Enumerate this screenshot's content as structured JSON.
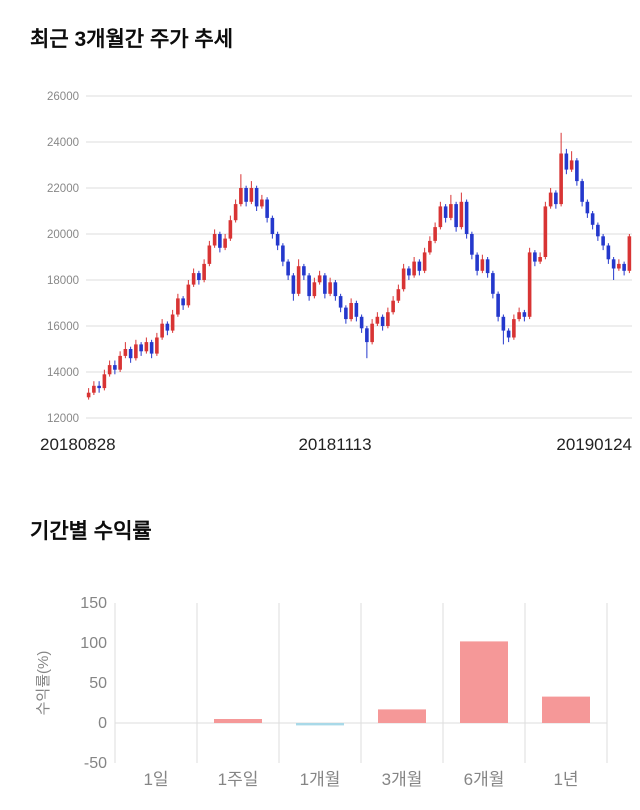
{
  "chart_data": [
    {
      "type": "candlestick",
      "title": "최근 3개월간 주가 추세",
      "ylim": [
        12000,
        26000
      ],
      "yticks": [
        12000,
        14000,
        16000,
        18000,
        20000,
        22000,
        24000,
        26000
      ],
      "xtick_labels": [
        "20180828",
        "20181113",
        "20190124"
      ],
      "up_color": "#d83434",
      "down_color": "#2438cc",
      "grid_color": "#dddddd",
      "tick_color": "#888888",
      "date_color": "#222222",
      "candles": [
        [
          12900,
          13300,
          12800,
          13100
        ],
        [
          13100,
          13600,
          13000,
          13400
        ],
        [
          13400,
          13600,
          13100,
          13300
        ],
        [
          13300,
          14100,
          13200,
          13900
        ],
        [
          13900,
          14500,
          13800,
          14300
        ],
        [
          14300,
          14500,
          13900,
          14100
        ],
        [
          14100,
          14900,
          14000,
          14700
        ],
        [
          14700,
          15300,
          14600,
          15000
        ],
        [
          15000,
          15100,
          14400,
          14600
        ],
        [
          14600,
          15400,
          14500,
          15200
        ],
        [
          15200,
          15300,
          14700,
          14900
        ],
        [
          14900,
          15500,
          14800,
          15300
        ],
        [
          15300,
          15400,
          14600,
          14800
        ],
        [
          14800,
          15700,
          14700,
          15500
        ],
        [
          15500,
          16300,
          15400,
          16100
        ],
        [
          16100,
          16200,
          15600,
          15800
        ],
        [
          15800,
          16700,
          15700,
          16500
        ],
        [
          16500,
          17400,
          16400,
          17200
        ],
        [
          17200,
          17300,
          16700,
          16900
        ],
        [
          16900,
          18000,
          16800,
          17800
        ],
        [
          17800,
          18500,
          17700,
          18300
        ],
        [
          18300,
          18400,
          17800,
          18000
        ],
        [
          18000,
          18900,
          17900,
          18700
        ],
        [
          18700,
          19700,
          18600,
          19500
        ],
        [
          19500,
          20200,
          19400,
          20000
        ],
        [
          20000,
          20100,
          19200,
          19400
        ],
        [
          19400,
          20000,
          19300,
          19800
        ],
        [
          19800,
          20800,
          19700,
          20600
        ],
        [
          20600,
          21500,
          20500,
          21300
        ],
        [
          21300,
          22600,
          21200,
          22000
        ],
        [
          22000,
          22100,
          21200,
          21400
        ],
        [
          21400,
          22300,
          21300,
          22000
        ],
        [
          22000,
          22100,
          21000,
          21200
        ],
        [
          21200,
          21700,
          21100,
          21500
        ],
        [
          21500,
          21600,
          20500,
          20700
        ],
        [
          20700,
          20800,
          19800,
          20000
        ],
        [
          20000,
          20100,
          19300,
          19500
        ],
        [
          19500,
          19600,
          18600,
          18800
        ],
        [
          18800,
          18900,
          18000,
          18200
        ],
        [
          18200,
          18300,
          17100,
          17400
        ],
        [
          17400,
          18900,
          17300,
          18600
        ],
        [
          18600,
          18700,
          18000,
          18200
        ],
        [
          18200,
          18300,
          17100,
          17300
        ],
        [
          17300,
          18100,
          17200,
          17900
        ],
        [
          17900,
          18400,
          17800,
          18200
        ],
        [
          18200,
          18300,
          17200,
          17400
        ],
        [
          17400,
          18100,
          17300,
          17900
        ],
        [
          17900,
          18000,
          17100,
          17300
        ],
        [
          17300,
          17400,
          16600,
          16800
        ],
        [
          16800,
          16900,
          16100,
          16300
        ],
        [
          16300,
          17200,
          16200,
          17000
        ],
        [
          17000,
          17100,
          16200,
          16400
        ],
        [
          16400,
          16500,
          15700,
          15900
        ],
        [
          15900,
          16000,
          14600,
          15300
        ],
        [
          15300,
          16300,
          15200,
          16100
        ],
        [
          16100,
          16600,
          16000,
          16400
        ],
        [
          16400,
          16500,
          15800,
          16000
        ],
        [
          16000,
          16800,
          15900,
          16600
        ],
        [
          16600,
          17300,
          16500,
          17100
        ],
        [
          17100,
          17800,
          17000,
          17600
        ],
        [
          17600,
          18700,
          17500,
          18500
        ],
        [
          18500,
          18600,
          18000,
          18200
        ],
        [
          18200,
          19000,
          18100,
          18800
        ],
        [
          18800,
          18900,
          18200,
          18400
        ],
        [
          18400,
          19400,
          18300,
          19200
        ],
        [
          19200,
          19900,
          19100,
          19700
        ],
        [
          19700,
          20500,
          19600,
          20300
        ],
        [
          20300,
          21400,
          20200,
          21200
        ],
        [
          21200,
          21300,
          20500,
          20700
        ],
        [
          20700,
          21700,
          20600,
          21300
        ],
        [
          21300,
          21400,
          20100,
          20300
        ],
        [
          20300,
          21800,
          20200,
          21400
        ],
        [
          21400,
          21500,
          19800,
          20000
        ],
        [
          20000,
          20100,
          18900,
          19100
        ],
        [
          19100,
          19200,
          18200,
          18400
        ],
        [
          18400,
          19100,
          18300,
          18900
        ],
        [
          18900,
          19000,
          18100,
          18300
        ],
        [
          18300,
          18400,
          17200,
          17400
        ],
        [
          17400,
          17500,
          16200,
          16400
        ],
        [
          16400,
          16500,
          15200,
          15800
        ],
        [
          15800,
          15900,
          15300,
          15500
        ],
        [
          15500,
          16500,
          15400,
          16300
        ],
        [
          16300,
          16800,
          16200,
          16600
        ],
        [
          16600,
          16700,
          16200,
          16400
        ],
        [
          16400,
          19400,
          16300,
          19200
        ],
        [
          19200,
          19300,
          18600,
          18800
        ],
        [
          18800,
          19200,
          18700,
          19000
        ],
        [
          19000,
          21400,
          18900,
          21200
        ],
        [
          21200,
          22000,
          21100,
          21800
        ],
        [
          21800,
          21900,
          21100,
          21300
        ],
        [
          21300,
          24400,
          21200,
          23500
        ],
        [
          23500,
          23700,
          22600,
          22800
        ],
        [
          22800,
          23600,
          22700,
          23200
        ],
        [
          23200,
          23300,
          22100,
          22300
        ],
        [
          22300,
          22400,
          21200,
          21400
        ],
        [
          21400,
          21500,
          20700,
          20900
        ],
        [
          20900,
          21000,
          20200,
          20400
        ],
        [
          20400,
          20500,
          19700,
          19900
        ],
        [
          19900,
          20000,
          19300,
          19500
        ],
        [
          19500,
          19600,
          18700,
          18900
        ],
        [
          18900,
          19000,
          18000,
          18500
        ],
        [
          18500,
          18900,
          18400,
          18700
        ],
        [
          18700,
          18800,
          18200,
          18400
        ],
        [
          18400,
          20000,
          18300,
          19900
        ]
      ]
    },
    {
      "type": "bar",
      "title": "기간별 수익률",
      "ylabel": "수익률(%)",
      "categories": [
        "1일",
        "1주일",
        "1개월",
        "3개월",
        "6개월",
        "1년"
      ],
      "values": [
        0,
        5,
        -3,
        17,
        102,
        33
      ],
      "ylim": [
        -50,
        150
      ],
      "yticks": [
        150,
        100,
        50,
        0,
        -50
      ],
      "positive_color": "#f59898",
      "negative_color": "#a9d9e8",
      "grid_color": "#dddddd",
      "tick_color": "#858585",
      "legend_position": "none",
      "grid": "vertical-separators"
    }
  ]
}
